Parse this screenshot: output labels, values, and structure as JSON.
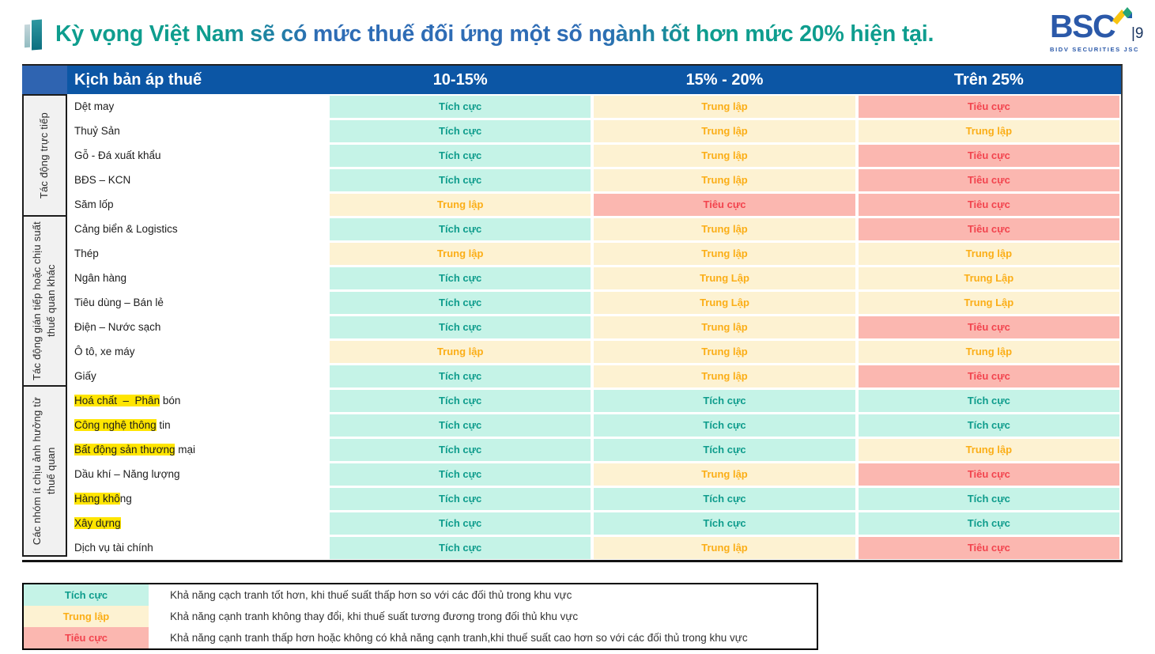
{
  "title": {
    "text": "Kỳ vọng Việt Nam sẽ có mức thuế đối ứng một số ngành tốt hơn mức 20% hiện tại.",
    "page": "|9"
  },
  "logo": {
    "wordmark": "BSC",
    "subtitle": "BIDV SECURITIES JSC"
  },
  "table": {
    "scenario_header": "Kịch bản áp thuế",
    "columns": [
      "10-15%",
      "15% - 20%",
      "Trên 25%"
    ],
    "groups": [
      {
        "label": "Tác động trực tiếp",
        "row_count": 5
      },
      {
        "label": "Tác động gián tiếp hoặc chịu suất\nthuế quan khác",
        "row_count": 7
      },
      {
        "label": "Các nhóm ít chịu ảnh hưởng từ\nthuế quan",
        "row_count": 7
      }
    ],
    "rows": [
      {
        "sector": [
          {
            "text": "Dệt may",
            "highlighted": false
          }
        ],
        "cells": [
          "Tích cực",
          "Trung lập",
          "Tiêu cực"
        ]
      },
      {
        "sector": [
          {
            "text": "Thuỷ Sản",
            "highlighted": false
          }
        ],
        "cells": [
          "Tích cực",
          "Trung lập",
          "Trung lập"
        ]
      },
      {
        "sector": [
          {
            "text": "Gỗ - Đá xuất khẩu",
            "highlighted": false
          }
        ],
        "cells": [
          "Tích cực",
          "Trung lập",
          "Tiêu cực"
        ]
      },
      {
        "sector": [
          {
            "text": "BĐS – KCN",
            "highlighted": false
          }
        ],
        "cells": [
          "Tích cực",
          "Trung lập",
          "Tiêu cực"
        ]
      },
      {
        "sector": [
          {
            "text": "Săm lốp",
            "highlighted": false
          }
        ],
        "cells": [
          "Trung lập",
          "Tiêu cực",
          "Tiêu cực"
        ]
      },
      {
        "sector": [
          {
            "text": "Cảng biển & Logistics",
            "highlighted": false
          }
        ],
        "cells": [
          "Tích cực",
          "Trung lập",
          "Tiêu cực"
        ]
      },
      {
        "sector": [
          {
            "text": "Thép",
            "highlighted": false
          }
        ],
        "cells": [
          "Trung lập",
          "Trung lập",
          "Trung lập"
        ]
      },
      {
        "sector": [
          {
            "text": "Ngân hàng",
            "highlighted": false
          }
        ],
        "cells": [
          "Tích cực",
          "Trung Lập",
          "Trung Lập"
        ]
      },
      {
        "sector": [
          {
            "text": "Tiêu dùng – Bán lẻ",
            "highlighted": false
          }
        ],
        "cells": [
          "Tích cực",
          "Trung Lập",
          "Trung Lập"
        ]
      },
      {
        "sector": [
          {
            "text": "Điện – Nước sạch",
            "highlighted": false
          }
        ],
        "cells": [
          "Tích cực",
          "Trung lập",
          "Tiêu cực"
        ]
      },
      {
        "sector": [
          {
            "text": "Ô tô, xe máy",
            "highlighted": false
          }
        ],
        "cells": [
          "Trung lập",
          "Trung lập",
          "Trung lập"
        ]
      },
      {
        "sector": [
          {
            "text": "Giấy",
            "highlighted": false
          }
        ],
        "cells": [
          "Tích cực",
          "Trung lập",
          "Tiêu cực"
        ]
      },
      {
        "sector": [
          {
            "text": "Hoá chất  –  Phân",
            "highlighted": true
          },
          {
            "text": " bón",
            "highlighted": false
          }
        ],
        "cells": [
          "Tích cực",
          "Tích cực",
          "Tích cực"
        ]
      },
      {
        "sector": [
          {
            "text": "Công nghệ thông",
            "highlighted": true
          },
          {
            "text": " tin",
            "highlighted": false
          }
        ],
        "cells": [
          "Tích cực",
          "Tích cực",
          "Tích cực"
        ]
      },
      {
        "sector": [
          {
            "text": "Bất động sản thương",
            "highlighted": true
          },
          {
            "text": " mại",
            "highlighted": false
          }
        ],
        "cells": [
          "Tích cực",
          "Tích cực",
          "Trung lập"
        ]
      },
      {
        "sector": [
          {
            "text": "Dầu khí – Năng lượng",
            "highlighted": false
          }
        ],
        "cells": [
          "Tích cực",
          "Trung lập",
          "Tiêu cực"
        ]
      },
      {
        "sector": [
          {
            "text": "Hàng khô",
            "highlighted": true
          },
          {
            "text": "ng",
            "highlighted": false
          }
        ],
        "cells": [
          "Tích cực",
          "Tích cực",
          "Tích cực"
        ]
      },
      {
        "sector": [
          {
            "text": "Xây dựng",
            "highlighted": true
          }
        ],
        "cells": [
          "Tích cực",
          "Tích cực",
          "Tích cực"
        ]
      },
      {
        "sector": [
          {
            "text": "Dịch vụ tài chính",
            "highlighted": false
          }
        ],
        "cells": [
          "Tích cực",
          "Trung lập",
          "Tiêu cực"
        ]
      }
    ]
  },
  "legend": {
    "items": [
      {
        "label": "Tích cực",
        "type": "positive",
        "desc": "Khả năng cạch tranh tốt hơn, khi thuế suất thấp hơn so với các đối thủ trong khu vực"
      },
      {
        "label": "Trung lập",
        "type": "neutral",
        "desc": "Khả năng cạnh tranh không thay đổi, khi thuế suất tương đương trong đối thủ khu vực"
      },
      {
        "label": "Tiêu cực",
        "type": "negative",
        "desc": "Khả năng cạnh tranh thấp hơn hoặc không có khả năng cạnh tranh,khi thuế suất cao hơn so với các đối thủ trong khu vực"
      }
    ]
  },
  "colors": {
    "positive_bg": "#C5F3E7",
    "positive_text": "#0E9C8C",
    "neutral_bg": "#FDF2D2",
    "neutral_text": "#FBAE17",
    "negative_bg": "#FBB7B0",
    "negative_text": "#F2444E",
    "header_bg": "#0C56A5",
    "header_corner_bg": "#2F64B1",
    "highlight": "#FFE500",
    "title_teal": "#0E9D8E",
    "title_blue": "#2E6CB5",
    "logo_blue": "#2B59A9"
  }
}
